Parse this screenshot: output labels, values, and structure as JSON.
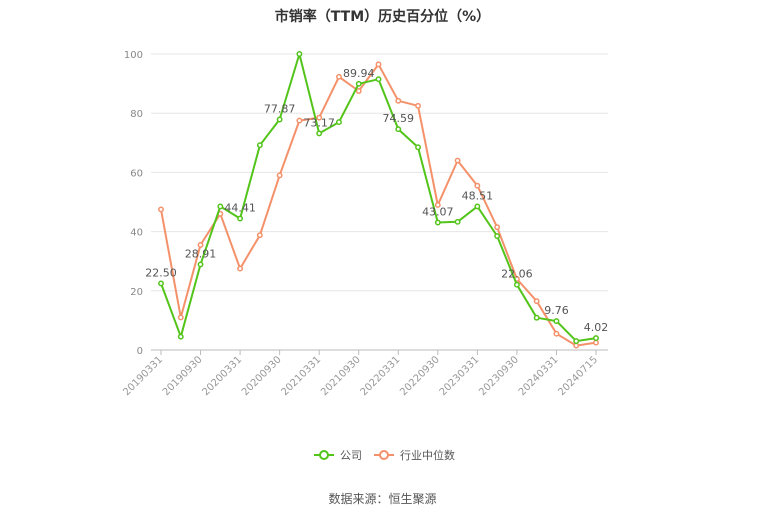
{
  "title": "市销率（TTM）历史百分位（%）",
  "source": "数据来源：恒生聚源",
  "chart_data": {
    "type": "line",
    "title": "市销率（TTM）历史百分位（%）",
    "xlabel": "",
    "ylabel": "",
    "ylim": [
      0,
      100
    ],
    "y_ticks": [
      0,
      20,
      40,
      60,
      80,
      100
    ],
    "grid": true,
    "legend_position": "bottom",
    "x_tick_labels": [
      "20190331",
      "20190930",
      "20200331",
      "20200930",
      "20210331",
      "20210930",
      "20220331",
      "20220930",
      "20230331",
      "20230930",
      "20240331",
      "20240715"
    ],
    "series": [
      {
        "name": "公司",
        "color": "#52c41a",
        "values": [
          22.5,
          4.5,
          28.91,
          48.5,
          44.41,
          69.2,
          77.87,
          100,
          73.17,
          77.0,
          89.94,
          91.5,
          74.59,
          68.5,
          43.07,
          43.3,
          48.51,
          38.5,
          22.06,
          10.9,
          9.76,
          3.0,
          4.02
        ],
        "labels": {
          "0": "22.50",
          "2": "28.91",
          "4": "44.41",
          "6": "77.87",
          "8": "73.17",
          "10": "89.94",
          "12": "74.59",
          "14": "43.07",
          "16": "48.51",
          "18": "22.06",
          "20": "9.76",
          "22": "4.02"
        }
      },
      {
        "name": "行业中位数",
        "color": "#f4916a",
        "values": [
          47.5,
          11.0,
          35.5,
          46.0,
          27.5,
          38.8,
          59.0,
          77.5,
          78.5,
          92.3,
          87.5,
          96.5,
          84.2,
          82.5,
          49.0,
          64.0,
          55.5,
          41.5,
          24.0,
          16.5,
          5.5,
          1.5,
          2.5
        ]
      }
    ]
  },
  "legend": [
    {
      "label": "公司",
      "color": "#52c41a"
    },
    {
      "label": "行业中位数",
      "color": "#f4916a"
    }
  ]
}
